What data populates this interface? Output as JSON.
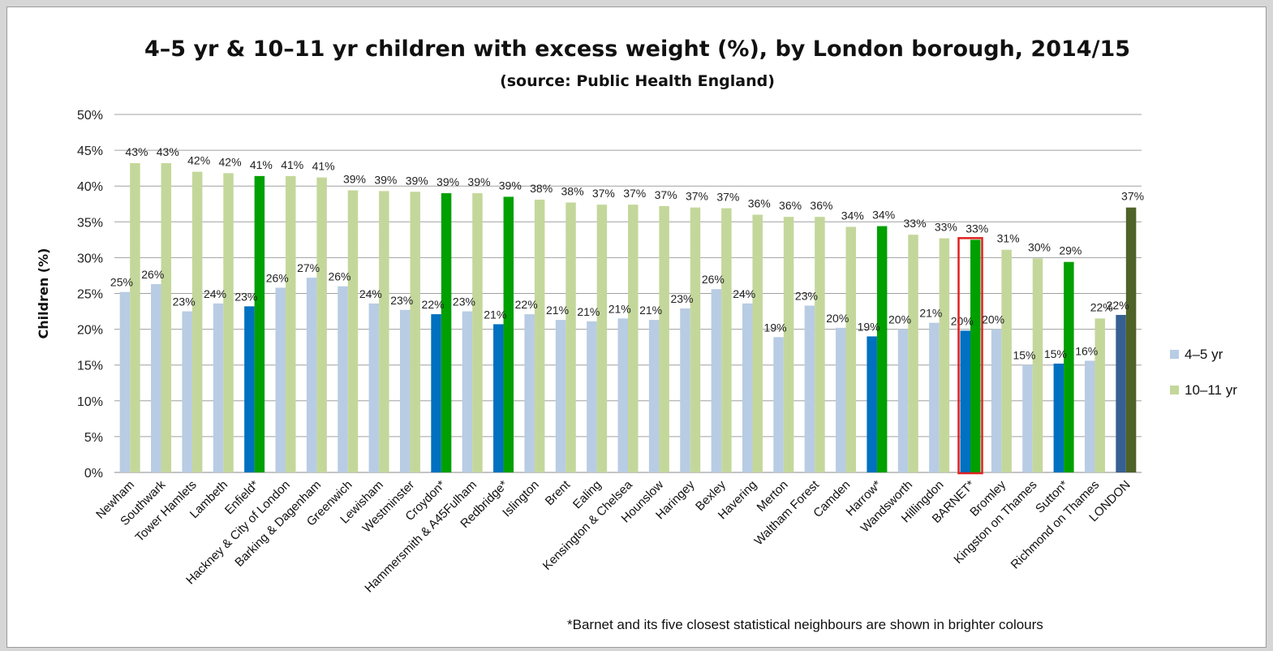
{
  "chart_data": {
    "type": "bar",
    "title": "4–5 yr & 10–11 yr children with excess weight (%), by London borough, 2014/15",
    "subtitle": "(source: Public Health England)",
    "ylabel": "Children (%)",
    "ylim": [
      0,
      50
    ],
    "y_ticks": [
      "0%",
      "5%",
      "10%",
      "15%",
      "20%",
      "25%",
      "30%",
      "35%",
      "40%",
      "45%",
      "50%"
    ],
    "grid": true,
    "legend_position": "right",
    "categories": [
      "Newham",
      "Southwark",
      "Tower Hamlets",
      "Lambeth",
      "Enfield*",
      "Hackney & City of London",
      "Barking & Dagenham",
      "Greenwich",
      "Lewisham",
      "Westminster",
      "Croydon*",
      "Hammersmith & A45Fulham",
      "Redbridge*",
      "Islington",
      "Brent",
      "Ealing",
      "Kensington & Chelsea",
      "Hounslow",
      "Haringey",
      "Bexley",
      "Havering",
      "Merton",
      "Waltham Forest",
      "Camden",
      "Harrow*",
      "Wandsworth",
      "Hillingdon",
      "BARNET*",
      "Bromley",
      "Kingston on Thames",
      "Sutton*",
      "Richmond on Thames",
      "LONDON"
    ],
    "series": [
      {
        "name": "4–5 yr",
        "color": "#b8cce4",
        "values": [
          25.2,
          26.3,
          22.5,
          23.6,
          23.2,
          25.8,
          27.2,
          26.0,
          23.6,
          22.7,
          22.1,
          22.5,
          20.7,
          22.1,
          21.3,
          21.1,
          21.5,
          21.3,
          22.9,
          25.6,
          23.6,
          18.9,
          23.3,
          20.2,
          19.0,
          20.0,
          20.9,
          19.8,
          20.0,
          15.0,
          15.2,
          15.6,
          22.0
        ],
        "labels": [
          "25%",
          "26%",
          "23%",
          "24%",
          "23%",
          "26%",
          "27%",
          "26%",
          "24%",
          "23%",
          "22%",
          "23%",
          "21%",
          "22%",
          "21%",
          "21%",
          "21%",
          "21%",
          "23%",
          "26%",
          "24%",
          "19%",
          "23%",
          "20%",
          "19%",
          "20%",
          "21%",
          "20%",
          "20%",
          "15%",
          "15%",
          "16%",
          "22%"
        ]
      },
      {
        "name": "10–11 yr",
        "color": "#c4d79b",
        "values": [
          43.2,
          43.2,
          42.0,
          41.8,
          41.4,
          41.4,
          41.2,
          39.4,
          39.3,
          39.2,
          39.0,
          39.0,
          38.5,
          38.1,
          37.7,
          37.4,
          37.4,
          37.2,
          37.0,
          36.9,
          36.0,
          35.7,
          35.7,
          34.3,
          34.4,
          33.2,
          32.7,
          32.5,
          31.1,
          29.9,
          29.4,
          21.5,
          37.0
        ],
        "labels": [
          "43%",
          "43%",
          "42%",
          "42%",
          "41%",
          "41%",
          "41%",
          "39%",
          "39%",
          "39%",
          "39%",
          "39%",
          "39%",
          "38%",
          "38%",
          "37%",
          "37%",
          "37%",
          "37%",
          "37%",
          "36%",
          "36%",
          "36%",
          "34%",
          "34%",
          "33%",
          "33%",
          "33%",
          "31%",
          "30%",
          "29%",
          "22%",
          "37%"
        ]
      }
    ],
    "highlight_colors": {
      "4–5 yr": "#0070c0",
      "10–11 yr": "#00a000"
    },
    "highlighted_categories": [
      "Enfield*",
      "Croydon*",
      "Redbridge*",
      "Harrow*",
      "BARNET*",
      "Sutton*"
    ],
    "barnet_outline_color": "#e02020",
    "london_colors": {
      "4–5 yr": "#376092",
      "10–11 yr": "#4f6228"
    },
    "footnote": "*Barnet and its five closest statistical neighbours are  shown in brighter colours"
  }
}
